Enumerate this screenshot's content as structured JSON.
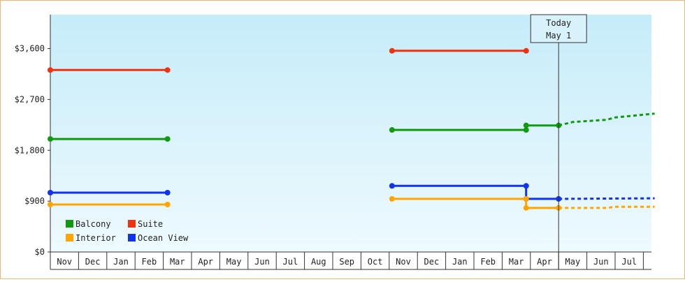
{
  "chart_data": {
    "type": "line",
    "y_ticks": [
      {
        "value": 0,
        "label": "$0"
      },
      {
        "value": 900,
        "label": "$900"
      },
      {
        "value": 1800,
        "label": "$1,800"
      },
      {
        "value": 2700,
        "label": "$2,700"
      },
      {
        "value": 3600,
        "label": "$3,600"
      }
    ],
    "ylim": [
      0,
      4200
    ],
    "x_months": [
      "Nov",
      "Dec",
      "Jan",
      "Feb",
      "Mar",
      "Apr",
      "May",
      "Jun",
      "Jul",
      "Aug",
      "Sep",
      "Oct",
      "Nov",
      "Dec",
      "Jan",
      "Feb",
      "Mar",
      "Apr",
      "May",
      "Jun",
      "Jul"
    ],
    "xlim": [
      0,
      21.4
    ],
    "today": {
      "line1": "Today",
      "line2": "May 1",
      "x": 18.0
    },
    "grid": false,
    "legend_position": "bottom-left",
    "legend": [
      {
        "name": "Balcony",
        "color": "#119911"
      },
      {
        "name": "Suite",
        "color": "#ee3311"
      },
      {
        "name": "Interior",
        "color": "#ffa500"
      },
      {
        "name": "Ocean View",
        "color": "#1133ee"
      }
    ],
    "series": [
      {
        "name": "Suite",
        "color": "#ee3311",
        "segments": [
          {
            "dashed": false,
            "points": [
              [
                0.0,
                3220
              ],
              [
                4.15,
                3220
              ]
            ]
          },
          {
            "dashed": false,
            "points": [
              [
                12.1,
                3560
              ],
              [
                16.85,
                3560
              ]
            ]
          }
        ],
        "markers": [
          [
            0.0,
            3220
          ],
          [
            4.15,
            3220
          ],
          [
            12.1,
            3560
          ],
          [
            16.85,
            3560
          ]
        ]
      },
      {
        "name": "Balcony",
        "color": "#119911",
        "segments": [
          {
            "dashed": false,
            "points": [
              [
                0.0,
                2000
              ],
              [
                4.15,
                2000
              ]
            ]
          },
          {
            "dashed": false,
            "points": [
              [
                12.1,
                2160
              ],
              [
                16.85,
                2160
              ],
              [
                16.85,
                2240
              ],
              [
                18.0,
                2240
              ]
            ]
          },
          {
            "dashed": true,
            "points": [
              [
                18.0,
                2240
              ],
              [
                18.5,
                2300
              ],
              [
                19.7,
                2340
              ],
              [
                20.0,
                2380
              ],
              [
                21.4,
                2450
              ]
            ]
          }
        ],
        "markers": [
          [
            0.0,
            2000
          ],
          [
            4.15,
            2000
          ],
          [
            12.1,
            2160
          ],
          [
            16.85,
            2160
          ],
          [
            16.85,
            2240
          ],
          [
            18.0,
            2240
          ]
        ]
      },
      {
        "name": "Ocean View",
        "color": "#1133ee",
        "segments": [
          {
            "dashed": false,
            "points": [
              [
                0.0,
                1050
              ],
              [
                4.15,
                1050
              ]
            ]
          },
          {
            "dashed": false,
            "points": [
              [
                12.1,
                1170
              ],
              [
                16.85,
                1170
              ],
              [
                16.85,
                940
              ],
              [
                18.0,
                940
              ]
            ]
          },
          {
            "dashed": true,
            "points": [
              [
                18.0,
                940
              ],
              [
                21.4,
                950
              ]
            ]
          }
        ],
        "markers": [
          [
            0.0,
            1050
          ],
          [
            4.15,
            1050
          ],
          [
            12.1,
            1170
          ],
          [
            16.85,
            1170
          ],
          [
            16.85,
            940
          ],
          [
            18.0,
            940
          ]
        ]
      },
      {
        "name": "Interior",
        "color": "#ffa500",
        "segments": [
          {
            "dashed": false,
            "points": [
              [
                0.0,
                840
              ],
              [
                4.15,
                840
              ]
            ]
          },
          {
            "dashed": false,
            "points": [
              [
                12.1,
                940
              ],
              [
                16.85,
                940
              ],
              [
                16.85,
                780
              ],
              [
                18.0,
                780
              ]
            ]
          },
          {
            "dashed": true,
            "points": [
              [
                18.0,
                780
              ],
              [
                19.7,
                780
              ],
              [
                20.0,
                800
              ],
              [
                21.4,
                800
              ]
            ]
          }
        ],
        "markers": [
          [
            0.0,
            840
          ],
          [
            4.15,
            840
          ],
          [
            12.1,
            940
          ],
          [
            16.85,
            940
          ],
          [
            16.85,
            780
          ],
          [
            18.0,
            780
          ]
        ]
      }
    ]
  }
}
